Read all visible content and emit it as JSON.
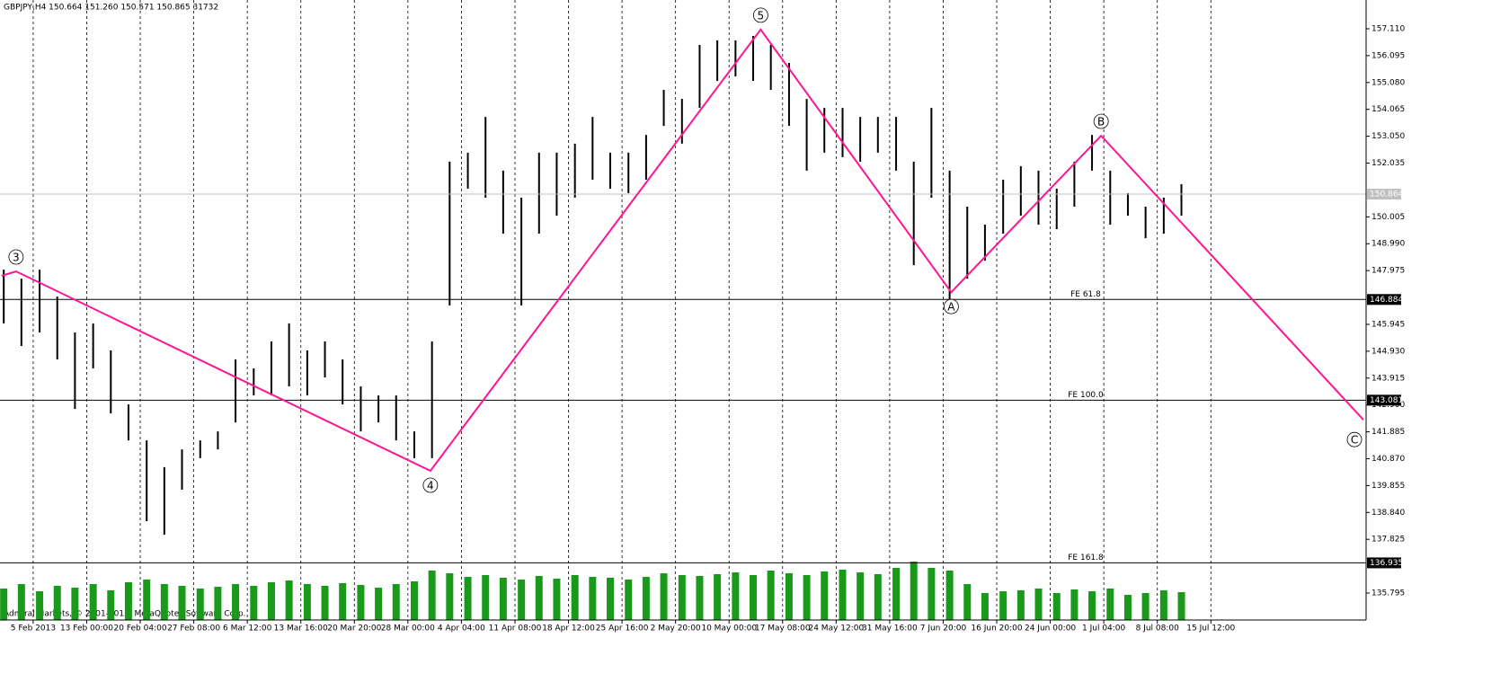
{
  "chart_data": {
    "type": "ohlc",
    "title": "GBPJPY,H4  150.664 151.260 150.571 150.865  31732",
    "copyright": "Admiral Markets, © 2001-2013, MetaQuotes Software Corp.",
    "xlim": [
      -0.62,
      24.9
    ],
    "xticks": [
      {
        "value": 0,
        "label": "5 Feb 2013"
      },
      {
        "value": 1,
        "label": "13 Feb 00:00"
      },
      {
        "value": 2,
        "label": "20 Feb 04:00"
      },
      {
        "value": 3,
        "label": "27 Feb 08:00"
      },
      {
        "value": 4,
        "label": "6 Mar 12:00"
      },
      {
        "value": 5,
        "label": "13 Mar 16:00"
      },
      {
        "value": 6,
        "label": "20 Mar 20:00"
      },
      {
        "value": 7,
        "label": "28 Mar 00:00"
      },
      {
        "value": 8,
        "label": "4 Apr 04:00"
      },
      {
        "value": 9,
        "label": "11 Apr 08:00"
      },
      {
        "value": 10,
        "label": "18 Apr 12:00"
      },
      {
        "value": 11,
        "label": "25 Apr 16:00"
      },
      {
        "value": 12,
        "label": "2 May 20:00"
      },
      {
        "value": 13,
        "label": "10 May 00:00"
      },
      {
        "value": 14,
        "label": "17 May 08:00"
      },
      {
        "value": 15,
        "label": "24 May 12:00"
      },
      {
        "value": 16,
        "label": "31 May 16:00"
      },
      {
        "value": 17,
        "label": "7 Jun 20:00"
      },
      {
        "value": 18,
        "label": "16 Jun 20:00"
      },
      {
        "value": 19,
        "label": "24 Jun 00:00"
      },
      {
        "value": 20,
        "label": "1 Jul 04:00"
      },
      {
        "value": 21,
        "label": "8 Jul 08:00"
      },
      {
        "value": 22,
        "label": "15 Jul 12:00"
      }
    ],
    "ylim": [
      134.777,
      158.196
    ],
    "yticks": [
      {
        "value": 157.11,
        "label": "157.110"
      },
      {
        "value": 156.095,
        "label": "156.095"
      },
      {
        "value": 155.08,
        "label": "155.080"
      },
      {
        "value": 154.065,
        "label": "154.065"
      },
      {
        "value": 153.05,
        "label": "153.050"
      },
      {
        "value": 152.035,
        "label": "152.035"
      },
      {
        "value": 150.005,
        "label": "150.005"
      },
      {
        "value": 148.99,
        "label": "148.990"
      },
      {
        "value": 147.975,
        "label": "147.975"
      },
      {
        "value": 145.945,
        "label": "145.945"
      },
      {
        "value": 144.93,
        "label": "144.930"
      },
      {
        "value": 143.915,
        "label": "143.915"
      },
      {
        "value": 142.9,
        "label": "142.900"
      },
      {
        "value": 141.885,
        "label": "141.885"
      },
      {
        "value": 140.87,
        "label": "140.870"
      },
      {
        "value": 139.855,
        "label": "139.855"
      },
      {
        "value": 138.84,
        "label": "138.840"
      },
      {
        "value": 137.825,
        "label": "137.825"
      },
      {
        "value": 135.795,
        "label": "135.795"
      }
    ],
    "grid": true,
    "color": "#000000",
    "x": [
      -0.55,
      -0.22,
      0.12,
      0.45,
      0.78,
      1.12,
      1.45,
      1.78,
      2.12,
      2.45,
      2.78,
      3.12,
      3.45,
      3.78,
      4.12,
      4.45,
      4.78,
      5.12,
      5.45,
      5.78,
      6.12,
      6.45,
      6.78,
      7.12,
      7.45,
      7.78,
      8.12,
      8.45,
      8.78,
      9.12,
      9.45,
      9.78,
      10.12,
      10.45,
      10.78,
      11.12,
      11.45,
      11.78,
      12.12,
      12.45,
      12.78,
      13.12,
      13.45,
      13.78,
      14.12,
      14.45,
      14.78,
      15.12,
      15.45,
      15.78,
      16.12,
      16.45,
      16.78,
      17.12,
      17.45,
      17.78,
      18.12,
      18.45,
      18.78,
      19.12,
      19.45,
      19.78,
      20.12,
      20.45,
      20.78,
      21.12,
      21.45
    ],
    "low": [
      145.98,
      145.13,
      145.64,
      144.62,
      142.75,
      144.28,
      142.58,
      141.56,
      138.51,
      138.0,
      139.7,
      140.89,
      141.22,
      142.24,
      143.26,
      143.26,
      143.6,
      143.26,
      143.94,
      142.92,
      141.9,
      142.24,
      141.56,
      140.89,
      140.89,
      146.66,
      151.07,
      150.73,
      149.37,
      146.66,
      149.37,
      150.05,
      150.73,
      151.41,
      151.07,
      150.9,
      151.41,
      153.44,
      152.77,
      154.12,
      155.14,
      155.31,
      155.14,
      154.8,
      153.44,
      151.75,
      152.43,
      152.26,
      152.09,
      152.43,
      151.75,
      148.18,
      150.73,
      146.66,
      147.67,
      148.35,
      149.37,
      150.05,
      149.71,
      149.54,
      150.39,
      151.75,
      149.71,
      150.05,
      149.2,
      149.37,
      150.05
    ],
    "high": [
      148.01,
      147.67,
      148.01,
      146.99,
      145.64,
      145.98,
      144.96,
      142.92,
      141.56,
      140.55,
      141.22,
      141.56,
      141.9,
      144.62,
      144.28,
      145.3,
      145.98,
      144.96,
      145.3,
      144.62,
      143.6,
      143.26,
      143.26,
      141.9,
      145.3,
      152.09,
      152.43,
      153.78,
      151.75,
      150.73,
      152.43,
      152.43,
      152.77,
      153.78,
      152.43,
      152.43,
      153.1,
      154.8,
      154.46,
      156.5,
      156.67,
      156.67,
      156.84,
      156.5,
      155.82,
      154.46,
      154.12,
      154.12,
      153.78,
      153.78,
      153.78,
      152.09,
      154.12,
      151.75,
      150.39,
      149.71,
      151.41,
      151.92,
      151.75,
      151.07,
      152.09,
      153.1,
      151.75,
      150.9,
      150.39,
      150.73,
      151.24
    ],
    "volume_color": "#1a9a1a",
    "volume_lim": [
      0,
      70
    ],
    "volume": [
      35,
      40,
      32,
      38,
      36,
      40,
      33,
      42,
      45,
      40,
      38,
      35,
      37,
      40,
      38,
      42,
      44,
      40,
      38,
      41,
      39,
      36,
      40,
      43,
      55,
      52,
      48,
      50,
      47,
      45,
      49,
      46,
      50,
      48,
      47,
      45,
      48,
      52,
      50,
      49,
      51,
      53,
      50,
      55,
      52,
      50,
      54,
      56,
      53,
      51,
      58,
      65,
      58,
      55,
      40,
      30,
      32,
      33,
      35,
      30,
      34,
      32,
      35,
      28,
      30,
      33,
      31
    ],
    "wave": {
      "color": "#ff1493",
      "x": [
        -0.59,
        -0.32,
        7.42,
        13.59,
        17.15,
        19.95,
        24.85
      ],
      "values": [
        147.78,
        147.945,
        140.41,
        157.08,
        147.16,
        153.07,
        142.34
      ],
      "labels": [
        null,
        "3",
        "4",
        "5",
        "A",
        "B",
        "C"
      ]
    },
    "levels": [
      {
        "value": 150.864,
        "label": "150.864",
        "color": "#c0c0c0"
      },
      {
        "value": 146.884,
        "label": "146.884",
        "name": "FE 61.8",
        "color": "#000000"
      },
      {
        "value": 143.081,
        "label": "143.081",
        "name": "FE 100.0",
        "color": "#000000"
      },
      {
        "value": 136.935,
        "label": "136.935",
        "name": "FE 161.8",
        "color": "#000000"
      }
    ]
  }
}
